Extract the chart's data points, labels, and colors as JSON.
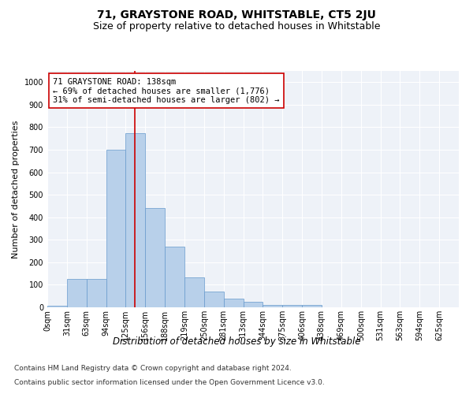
{
  "title": "71, GRAYSTONE ROAD, WHITSTABLE, CT5 2JU",
  "subtitle": "Size of property relative to detached houses in Whitstable",
  "xlabel": "Distribution of detached houses by size in Whitstable",
  "ylabel": "Number of detached properties",
  "footer_line1": "Contains HM Land Registry data © Crown copyright and database right 2024.",
  "footer_line2": "Contains public sector information licensed under the Open Government Licence v3.0.",
  "bin_labels": [
    "0sqm",
    "31sqm",
    "63sqm",
    "94sqm",
    "125sqm",
    "156sqm",
    "188sqm",
    "219sqm",
    "250sqm",
    "281sqm",
    "313sqm",
    "344sqm",
    "375sqm",
    "406sqm",
    "438sqm",
    "469sqm",
    "500sqm",
    "531sqm",
    "563sqm",
    "594sqm",
    "625sqm"
  ],
  "bar_values": [
    8,
    125,
    125,
    700,
    775,
    440,
    270,
    132,
    70,
    40,
    25,
    12,
    12,
    12,
    0,
    0,
    0,
    0,
    0,
    0,
    0
  ],
  "bar_color": "#b8d0ea",
  "bar_edge_color": "#6699cc",
  "annotation_box_text": "71 GRAYSTONE ROAD: 138sqm\n← 69% of detached houses are smaller (1,776)\n31% of semi-detached houses are larger (802) →",
  "vline_x": 4.45,
  "vline_color": "#cc0000",
  "ylim": [
    0,
    1050
  ],
  "yticks": [
    0,
    100,
    200,
    300,
    400,
    500,
    600,
    700,
    800,
    900,
    1000
  ],
  "background_color": "#eef2f8",
  "title_fontsize": 10,
  "subtitle_fontsize": 9,
  "axis_label_fontsize": 8.5,
  "ylabel_fontsize": 8,
  "tick_fontsize": 7,
  "annotation_fontsize": 7.5,
  "footer_fontsize": 6.5
}
